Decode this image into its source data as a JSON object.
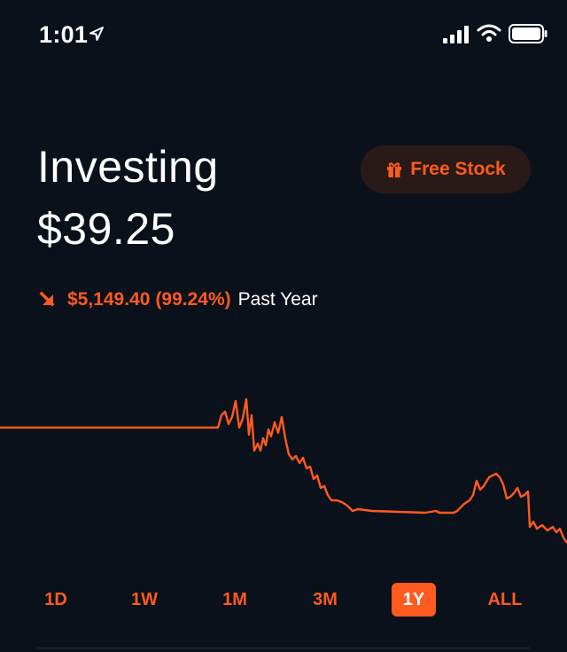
{
  "status_bar": {
    "time": "1:01",
    "icons": [
      "location-arrow-icon",
      "signal-icon",
      "wifi-icon",
      "battery-icon"
    ]
  },
  "header": {
    "title": "Investing",
    "balance": "$39.25"
  },
  "free_stock": {
    "label": "Free Stock",
    "icon": "gift-icon"
  },
  "change": {
    "direction": "down",
    "value": "$5,149.40",
    "percent": "(99.24%)",
    "period": "Past Year"
  },
  "colors": {
    "background": "#0b111a",
    "accent": "#ff5a1f",
    "text": "#ffffff",
    "pill_bg": "#2a1a17"
  },
  "ranges": {
    "items": [
      "1D",
      "1W",
      "1M",
      "3M",
      "1Y",
      "ALL"
    ],
    "selected": "1Y"
  }
}
